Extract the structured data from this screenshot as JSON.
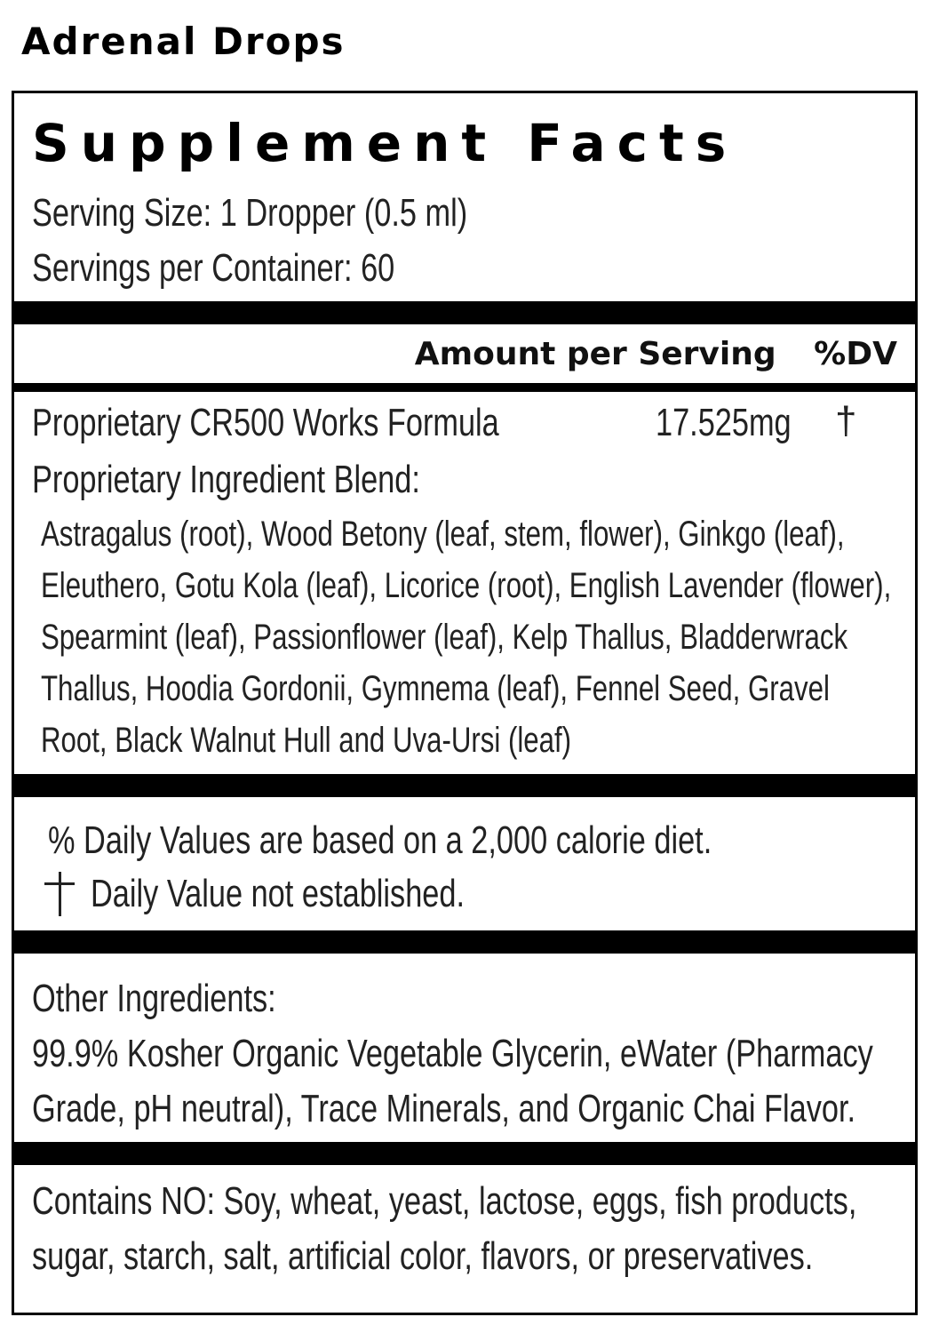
{
  "product": {
    "title": "Adrenal Drops"
  },
  "facts": {
    "heading": "Supplement Facts",
    "serving_size": "Serving Size: 1 Dropper (0.5 ml)",
    "servings_per_container": "Servings per Container: 60",
    "amount_header": "Amount per Serving",
    "dv_header": "%DV",
    "formula_name": "Proprietary CR500 Works Formula",
    "formula_amount": "17.525mg",
    "formula_dv": "†",
    "blend_label": "Proprietary Ingredient Blend:",
    "blend_lines": [
      "Astragalus (root), Wood Betony (leaf, stem, flower), Ginkgo (leaf),",
      "Eleuthero, Gotu Kola (leaf), Licorice (root), English Lavender (flower),",
      "Spearmint (leaf), Passionflower (leaf), Kelp Thallus, Bladderwrack",
      "Thallus, Hoodia Gordonii,  Gymnema (leaf), Fennel Seed, Gravel",
      "Root, Black Walnut Hull and Uva-Ursi (leaf)"
    ],
    "footnote_dv": "% Daily Values are based on a 2,000 calorie diet.",
    "footnote_dagger_text": "Daily Value not established.",
    "other_label": "Other Ingredients:",
    "other_lines": [
      "99.9% Kosher Organic Vegetable Glycerin, eWater (Pharmacy",
      "Grade, pH neutral), Trace Minerals, and Organic Chai Flavor."
    ],
    "contains_lines": [
      "Contains NO: Soy, wheat, yeast, lactose, eggs, fish products,",
      "sugar, starch, salt, artificial color, flavors, or preservatives."
    ]
  }
}
